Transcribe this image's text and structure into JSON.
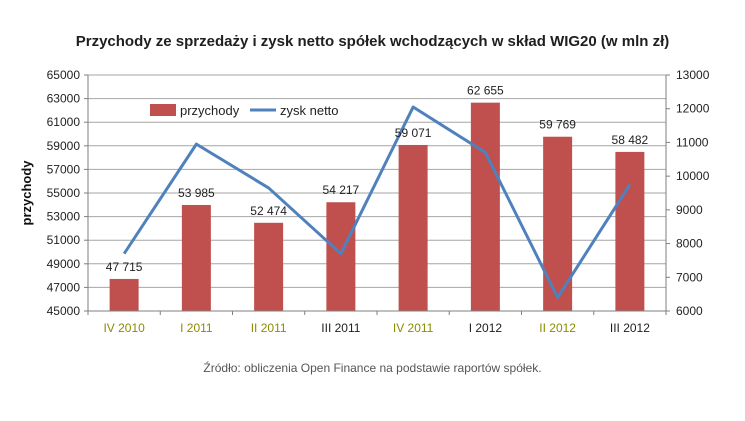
{
  "chart_data": {
    "type": "bar",
    "title": "Przychody ze sprzedaży i zysk netto spółek wchodzących w skład WIG20 (w mln zł)",
    "categories": [
      "IV 2010",
      "I 2011",
      "II 2011",
      "III 2011",
      "IV 2011",
      "I 2012",
      "II 2012",
      "III 2012"
    ],
    "category_colors": [
      "#8c8c00",
      "#8c8c00",
      "#8c8c00",
      "#1f1f1f",
      "#8c8c00",
      "#1f1f1f",
      "#8c8c00",
      "#1f1f1f"
    ],
    "series": [
      {
        "name": "przychody",
        "type": "bar",
        "axis": "left",
        "color": "#c0504d",
        "values": [
          47715,
          53985,
          52474,
          54217,
          59071,
          62655,
          59769,
          58482
        ],
        "labels": [
          "47 715",
          "53 985",
          "52 474",
          "54 217",
          "59 071",
          "62 655",
          "59 769",
          "58 482"
        ]
      },
      {
        "name": "zysk netto",
        "type": "line",
        "axis": "right",
        "color": "#4f81bd",
        "values": [
          7700,
          10950,
          9650,
          7700,
          12050,
          10700,
          6400,
          9750
        ]
      }
    ],
    "ylabel": "przychody",
    "ylim": [
      45000,
      65000
    ],
    "y_ticks": [
      "45000",
      "47000",
      "49000",
      "51000",
      "53000",
      "55000",
      "57000",
      "59000",
      "61000",
      "63000",
      "65000"
    ],
    "y2lim": [
      6000,
      13000
    ],
    "y2_ticks": [
      "6000",
      "7000",
      "8000",
      "9000",
      "10000",
      "11000",
      "12000",
      "13000"
    ],
    "grid": true,
    "legend": "top-left"
  },
  "source": "Źródło: obliczenia Open Finance na podstawie raportów spółek."
}
